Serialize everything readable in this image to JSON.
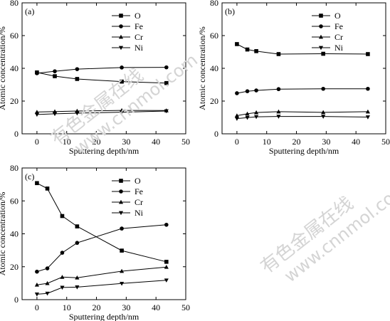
{
  "figure": {
    "watermark_lines": [
      "有色金属在线",
      "www.cnnmol.com"
    ]
  },
  "chart_data": [
    {
      "type": "line",
      "panel_label": "(a)",
      "xlabel": "Sputtering depth/nm",
      "ylabel": "Atomic concentration/%",
      "xlim": [
        -5,
        50
      ],
      "ylim": [
        0,
        80
      ],
      "xticks": [
        0,
        10,
        20,
        30,
        40,
        50
      ],
      "yticks": [
        0,
        20,
        40,
        60,
        80
      ],
      "grid": false,
      "legend_position": "top-right",
      "x": [
        0,
        6,
        13.5,
        28.5,
        43.5
      ],
      "series": [
        {
          "name": "O",
          "marker": "square",
          "values": [
            37.5,
            35.2,
            33.5,
            31.9,
            31.0
          ]
        },
        {
          "name": "Fe",
          "marker": "circle",
          "values": [
            37.0,
            38.2,
            39.5,
            40.5,
            40.6
          ]
        },
        {
          "name": "Cr",
          "marker": "triangle-up",
          "values": [
            13.3,
            13.6,
            13.9,
            14.3,
            14.2
          ]
        },
        {
          "name": "Ni",
          "marker": "triangle-down",
          "values": [
            11.8,
            12.2,
            12.6,
            13.2,
            13.9
          ]
        }
      ]
    },
    {
      "type": "line",
      "panel_label": "(b)",
      "xlabel": "Sputtering depth/nm",
      "ylabel": "Atomic concentration/%",
      "xlim": [
        -5,
        50
      ],
      "ylim": [
        0,
        80
      ],
      "xticks": [
        0,
        10,
        20,
        30,
        40,
        50
      ],
      "yticks": [
        0,
        20,
        40,
        60,
        80
      ],
      "grid": false,
      "legend_position": "top-right",
      "x": [
        0,
        3.5,
        6.5,
        14,
        29,
        44
      ],
      "series": [
        {
          "name": "O",
          "marker": "square",
          "values": [
            54.8,
            51.5,
            50.5,
            48.7,
            48.9,
            48.7
          ]
        },
        {
          "name": "Fe",
          "marker": "circle",
          "values": [
            24.8,
            26.0,
            26.5,
            27.3,
            27.5,
            27.5
          ]
        },
        {
          "name": "Cr",
          "marker": "triangle-up",
          "values": [
            11.1,
            12.2,
            13.0,
            13.5,
            13.1,
            13.5
          ]
        },
        {
          "name": "Ni",
          "marker": "triangle-down",
          "values": [
            9.3,
            9.9,
            10.4,
            10.6,
            10.6,
            10.2
          ]
        }
      ]
    },
    {
      "type": "line",
      "panel_label": "(c)",
      "xlabel": "Sputtering depth/nm",
      "ylabel": "Atomic concentration/%",
      "xlim": [
        -5,
        50
      ],
      "ylim": [
        0,
        80
      ],
      "xticks": [
        0,
        10,
        20,
        30,
        40,
        50
      ],
      "yticks": [
        0,
        20,
        40,
        60,
        80
      ],
      "grid": false,
      "legend_position": "top-right",
      "x": [
        0,
        3.5,
        8.5,
        13.5,
        28.5,
        43.5
      ],
      "series": [
        {
          "name": "O",
          "marker": "square",
          "values": [
            70.8,
            67.5,
            50.8,
            44.5,
            29.8,
            23.0
          ]
        },
        {
          "name": "Fe",
          "marker": "circle",
          "values": [
            17.0,
            19.0,
            28.5,
            34.5,
            43.2,
            45.5
          ]
        },
        {
          "name": "Cr",
          "marker": "triangle-up",
          "values": [
            9.0,
            9.9,
            13.7,
            13.3,
            17.3,
            19.8
          ]
        },
        {
          "name": "Ni",
          "marker": "triangle-down",
          "values": [
            3.3,
            3.8,
            7.4,
            7.6,
            9.8,
            11.8
          ]
        }
      ]
    }
  ]
}
